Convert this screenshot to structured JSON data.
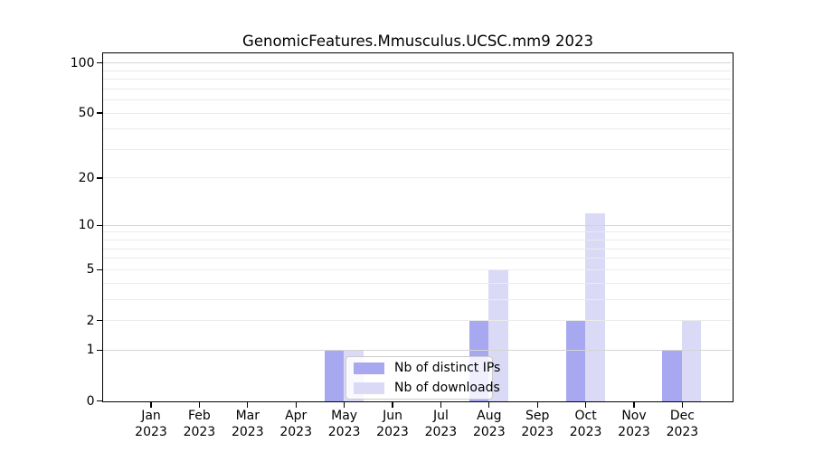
{
  "chart_data": {
    "type": "bar",
    "title": "GenomicFeatures.Mmusculus.UCSC.mm9 2023",
    "categories": [
      "Jan 2023",
      "Feb 2023",
      "Mar 2023",
      "Apr 2023",
      "May 2023",
      "Jun 2023",
      "Jul 2023",
      "Aug 2023",
      "Sep 2023",
      "Oct 2023",
      "Nov 2023",
      "Dec 2023"
    ],
    "series": [
      {
        "name": "Nb of distinct IPs",
        "color": "#a8a8f0",
        "values": [
          0,
          0,
          0,
          0,
          1,
          0,
          0,
          2,
          0,
          2,
          0,
          1
        ]
      },
      {
        "name": "Nb of downloads",
        "color": "#dadaf7",
        "values": [
          0,
          0,
          0,
          0,
          1,
          0,
          0,
          5,
          0,
          12,
          0,
          2
        ]
      }
    ],
    "xlabel": "",
    "ylabel": "",
    "y_scale": "log1p",
    "ylim": [
      0,
      115
    ],
    "y_tick_values": [
      0,
      1,
      2,
      5,
      10,
      20,
      50,
      100
    ],
    "grid_major_values": [
      1,
      10,
      100
    ],
    "grid_minor_values": [
      2,
      3,
      4,
      5,
      6,
      7,
      8,
      9,
      20,
      30,
      40,
      50,
      60,
      70,
      80,
      90
    ],
    "grid": "on",
    "legend_position": "inside-bottom-center"
  }
}
